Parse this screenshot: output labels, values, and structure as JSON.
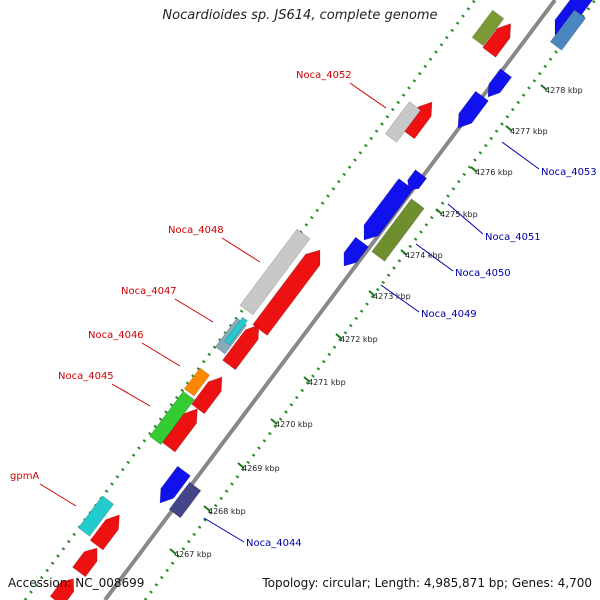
{
  "title": "Nocardioides sp. JS614, complete genome",
  "footer": {
    "accession": "Accession: NC_008699",
    "summary": "Topology: circular; Length: 4,985,871 bp; Genes: 4,700"
  },
  "ticks": [
    {
      "label": "4267 kbp"
    },
    {
      "label": "4268 kbp"
    },
    {
      "label": "4269 kbp"
    },
    {
      "label": "4270 kbp"
    },
    {
      "label": "4271 kbp"
    },
    {
      "label": "4272 kbp"
    },
    {
      "label": "4273 kbp"
    },
    {
      "label": "4274 kbp"
    },
    {
      "label": "4275 kbp"
    },
    {
      "label": "4276 kbp"
    },
    {
      "label": "4277 kbp"
    },
    {
      "label": "4278 kbp"
    }
  ],
  "gene_labels": [
    {
      "name": "gpmA",
      "color": "#cc0000"
    },
    {
      "name": "Noca_4045",
      "color": "#cc0000"
    },
    {
      "name": "Noca_4046",
      "color": "#cc0000"
    },
    {
      "name": "Noca_4047",
      "color": "#cc0000"
    },
    {
      "name": "Noca_4048",
      "color": "#cc0000"
    },
    {
      "name": "Noca_4052",
      "color": "#cc0000"
    },
    {
      "name": "Noca_4044",
      "color": "#0000aa"
    },
    {
      "name": "Noca_4049",
      "color": "#0000aa"
    },
    {
      "name": "Noca_4050",
      "color": "#0000aa"
    },
    {
      "name": "Noca_4051",
      "color": "#0000aa"
    },
    {
      "name": "Noca_4053",
      "color": "#0000aa"
    }
  ],
  "colors": {
    "backbone": "#888888",
    "dotted_track": "#2a8a2a",
    "forward_cds": "#ee1111",
    "reverse_cds": "#1111ee"
  }
}
